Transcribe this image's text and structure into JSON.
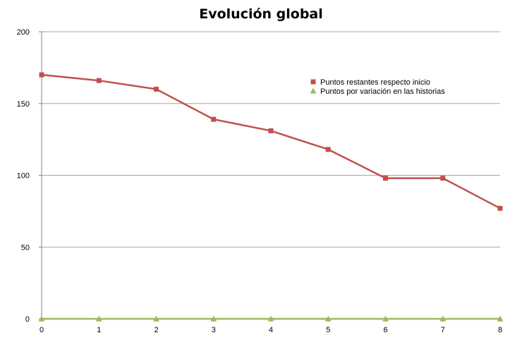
{
  "colors": {
    "series_1": "#c0504d",
    "series_2": "#9bbb59",
    "grid": "#a6a6a6",
    "axis": "#7f7f7f"
  },
  "chart_data": {
    "type": "line",
    "title": "Evolución global",
    "xlabel": "",
    "ylabel": "",
    "x": [
      0,
      1,
      2,
      3,
      4,
      5,
      6,
      7,
      8
    ],
    "x_ticks": [
      "0",
      "1",
      "2",
      "3",
      "4",
      "5",
      "6",
      "7",
      "8"
    ],
    "y_ticks": [
      "0",
      "50",
      "100",
      "150",
      "200"
    ],
    "xlim": [
      0,
      8
    ],
    "ylim": [
      0,
      200
    ],
    "grid": "horizontal",
    "legend_position": "right",
    "series": [
      {
        "name": "Puntos restantes respecto inicio",
        "marker": "square",
        "color": "#c0504d",
        "values": [
          170,
          166,
          160,
          139,
          131,
          118,
          98,
          98,
          77
        ]
      },
      {
        "name": "Puntos por variación en las historias",
        "marker": "triangle",
        "color": "#9bbb59",
        "values": [
          0,
          0,
          0,
          0,
          0,
          0,
          0,
          0,
          0
        ]
      }
    ]
  }
}
